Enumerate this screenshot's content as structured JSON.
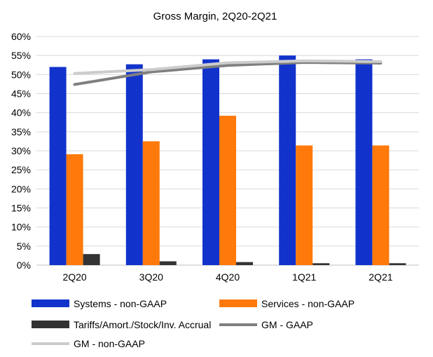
{
  "chart_data": {
    "type": "bar",
    "title": "Gross Margin,  2Q20-2Q21",
    "categories": [
      "2Q20",
      "3Q20",
      "4Q20",
      "1Q21",
      "2Q21"
    ],
    "ylim": [
      0,
      60
    ],
    "y_ticks": [
      "0%",
      "5%",
      "10%",
      "15%",
      "20%",
      "25%",
      "30%",
      "35%",
      "40%",
      "45%",
      "50%",
      "55%",
      "60%"
    ],
    "grid": true,
    "legend_position": "bottom",
    "series": [
      {
        "name": "Systems - non-GAAP",
        "kind": "bar",
        "color": "#1133cc",
        "values": [
          52.0,
          52.7,
          54.0,
          55.0,
          54.0
        ]
      },
      {
        "name": "Services - non-GAAP",
        "kind": "bar",
        "color": "#ff7a0a",
        "values": [
          29.1,
          32.5,
          39.2,
          31.4,
          31.4
        ]
      },
      {
        "name": "Tariffs/Amort./Stock/Inv. Accrual",
        "kind": "bar",
        "color": "#333333",
        "values": [
          2.9,
          1.0,
          0.8,
          0.5,
          0.5
        ]
      },
      {
        "name": "GM - GAAP",
        "kind": "line",
        "color": "#7f7f7f",
        "values": [
          47.4,
          50.7,
          52.4,
          53.2,
          53.0
        ]
      },
      {
        "name": "GM - non-GAAP",
        "kind": "line",
        "color": "#cccccc",
        "values": [
          50.3,
          51.3,
          53.1,
          53.6,
          53.4
        ]
      }
    ]
  }
}
